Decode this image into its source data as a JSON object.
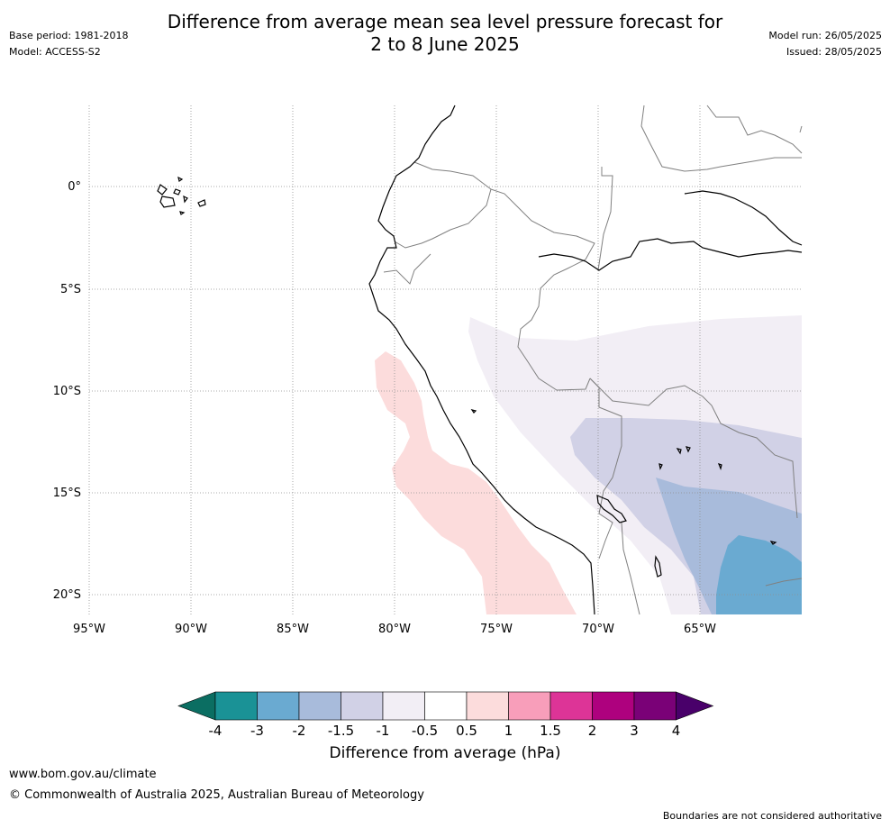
{
  "header": {
    "title_line1": "Difference from average mean sea level pressure forecast for",
    "title_line2": "2 to 8 June 2025",
    "base_period": "Base period: 1981-2018",
    "model": "Model: ACCESS-S2",
    "model_run": "Model run: 26/05/2025",
    "issued": "Issued: 28/05/2025"
  },
  "map": {
    "lat_labels": [
      "0°",
      "5°S",
      "10°S",
      "15°S",
      "20°S"
    ],
    "lon_labels": [
      "95°W",
      "90°W",
      "85°W",
      "80°W",
      "75°W",
      "70°W",
      "65°W"
    ],
    "colors": {
      "coast": "#000000",
      "border": "#808080",
      "grid": "#909090",
      "pos_0_5_1": "#fcdcdc",
      "neg_0_5": "#f2eef5",
      "neg_1": "#d1d1e6",
      "neg_1_5": "#a8bbdb",
      "neg_2": "#6aaad1"
    }
  },
  "colorbar": {
    "ticks": [
      "-4",
      "-3",
      "-2",
      "-1.5",
      "-1",
      "-0.5",
      "0.5",
      "1",
      "1.5",
      "2",
      "3",
      "4"
    ],
    "bins": [
      {
        "color": "#1a9296"
      },
      {
        "color": "#6aaad1"
      },
      {
        "color": "#a8bbdb"
      },
      {
        "color": "#d1d1e6"
      },
      {
        "color": "#f2eef5"
      },
      {
        "color": "#ffffff"
      },
      {
        "color": "#fcdcdc"
      },
      {
        "color": "#f89eba"
      },
      {
        "color": "#dd3497"
      },
      {
        "color": "#ae017e"
      },
      {
        "color": "#7a0177"
      }
    ],
    "low_end_color": "#0b6e62",
    "high_end_color": "#49006a",
    "label": "Difference from average (hPa)"
  },
  "footer": {
    "website": "www.bom.gov.au/climate",
    "copyright": "© Commonwealth of Australia 2025, Australian Bureau of Meteorology",
    "disclaimer": "Boundaries are not considered authoritative"
  }
}
